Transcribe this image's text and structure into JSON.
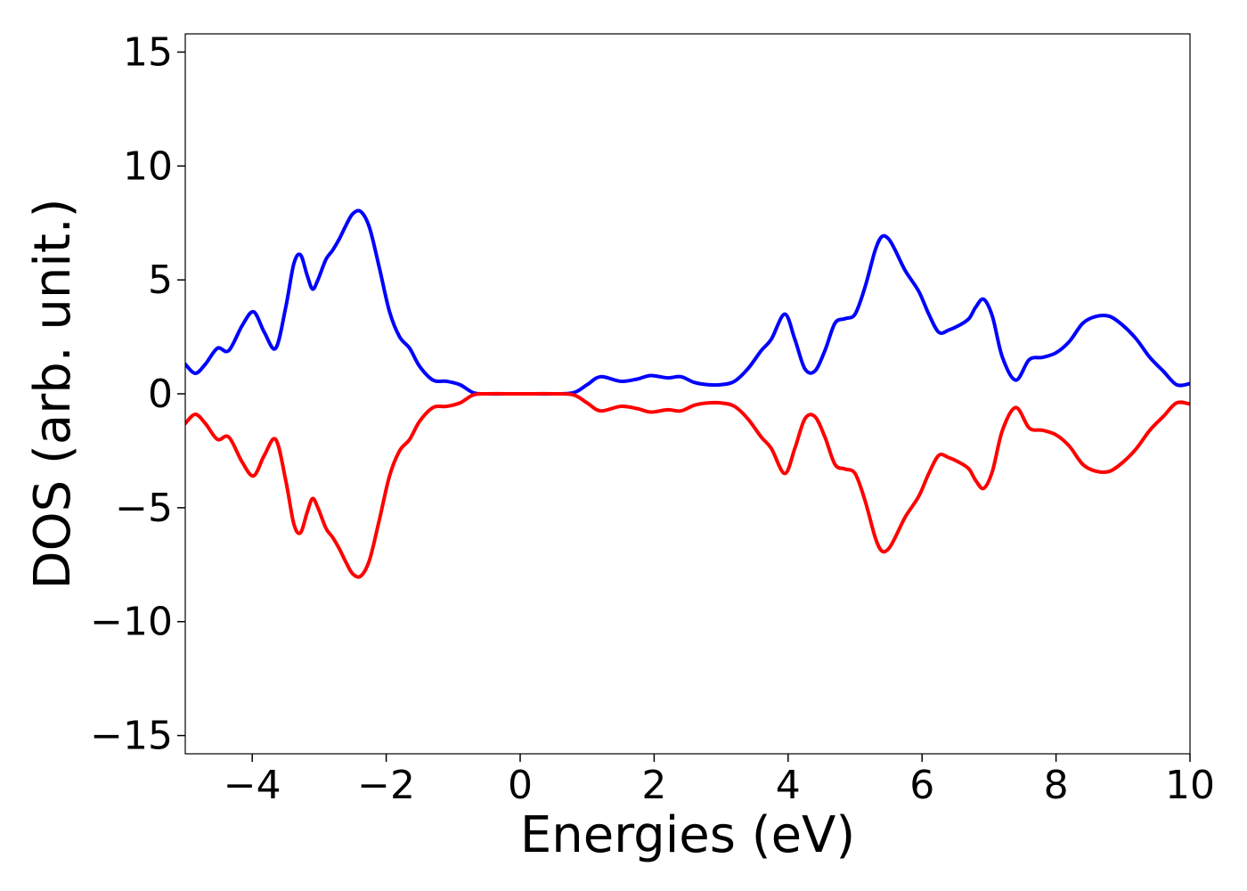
{
  "chart_data": {
    "type": "line",
    "title": "",
    "xlabel": "Energies (eV)",
    "ylabel": "DOS (arb. unit.)",
    "xlim": [
      -5,
      10
    ],
    "ylim": [
      -15.8,
      15.8
    ],
    "grid": false,
    "legend": "none",
    "xticks": [
      {
        "value": -4,
        "label": "−4"
      },
      {
        "value": -2,
        "label": "−2"
      },
      {
        "value": 0,
        "label": "0"
      },
      {
        "value": 2,
        "label": "2"
      },
      {
        "value": 4,
        "label": "4"
      },
      {
        "value": 6,
        "label": "6"
      },
      {
        "value": 8,
        "label": "8"
      },
      {
        "value": 10,
        "label": "10"
      }
    ],
    "yticks": [
      {
        "value": -15,
        "label": "−15"
      },
      {
        "value": -10,
        "label": "−10"
      },
      {
        "value": -5,
        "label": "−5"
      },
      {
        "value": 0,
        "label": "0"
      },
      {
        "value": 5,
        "label": "5"
      },
      {
        "value": 10,
        "label": "10"
      },
      {
        "value": 15,
        "label": "15"
      }
    ],
    "series": [
      {
        "color": "#0000ff",
        "x": [
          -5.0,
          -4.85,
          -4.7,
          -4.52,
          -4.35,
          -4.15,
          -3.98,
          -3.82,
          -3.65,
          -3.5,
          -3.38,
          -3.28,
          -3.18,
          -3.1,
          -3.02,
          -2.9,
          -2.8,
          -2.7,
          -2.6,
          -2.5,
          -2.38,
          -2.25,
          -2.1,
          -1.95,
          -1.8,
          -1.65,
          -1.5,
          -1.3,
          -1.1,
          -0.9,
          -0.7,
          -0.5,
          0.0,
          0.5,
          0.8,
          1.0,
          1.2,
          1.5,
          1.75,
          1.95,
          2.2,
          2.4,
          2.6,
          2.8,
          3.0,
          3.2,
          3.4,
          3.6,
          3.75,
          3.95,
          4.1,
          4.25,
          4.4,
          4.55,
          4.7,
          4.85,
          5.0,
          5.15,
          5.3,
          5.4,
          5.5,
          5.6,
          5.75,
          5.95,
          6.1,
          6.25,
          6.4,
          6.55,
          6.7,
          6.8,
          6.92,
          7.05,
          7.2,
          7.4,
          7.6,
          7.8,
          8.0,
          8.2,
          8.4,
          8.6,
          8.8,
          9.0,
          9.2,
          9.4,
          9.6,
          9.8,
          10.0
        ],
        "y": [
          1.3,
          0.9,
          1.3,
          2.0,
          1.9,
          3.0,
          3.6,
          2.7,
          2.0,
          3.8,
          5.7,
          6.1,
          5.2,
          4.6,
          5.0,
          5.9,
          6.3,
          6.8,
          7.4,
          7.9,
          8.0,
          7.3,
          5.5,
          3.6,
          2.5,
          2.0,
          1.2,
          0.6,
          0.55,
          0.4,
          0.05,
          0.0,
          0.0,
          0.0,
          0.05,
          0.4,
          0.75,
          0.55,
          0.65,
          0.8,
          0.7,
          0.75,
          0.5,
          0.4,
          0.4,
          0.55,
          1.1,
          1.9,
          2.4,
          3.5,
          2.4,
          1.1,
          1.0,
          1.9,
          3.1,
          3.3,
          3.5,
          4.7,
          6.3,
          6.9,
          6.8,
          6.3,
          5.4,
          4.5,
          3.5,
          2.7,
          2.8,
          3.0,
          3.3,
          3.8,
          4.15,
          3.4,
          1.6,
          0.6,
          1.5,
          1.6,
          1.8,
          2.3,
          3.1,
          3.4,
          3.4,
          3.0,
          2.4,
          1.6,
          1.0,
          0.4,
          0.45
        ]
      },
      {
        "color": "#ff0000",
        "x": [
          -5.0,
          -4.85,
          -4.7,
          -4.52,
          -4.35,
          -4.15,
          -3.98,
          -3.82,
          -3.65,
          -3.5,
          -3.38,
          -3.28,
          -3.18,
          -3.1,
          -3.02,
          -2.9,
          -2.8,
          -2.7,
          -2.6,
          -2.5,
          -2.38,
          -2.25,
          -2.1,
          -1.95,
          -1.8,
          -1.65,
          -1.5,
          -1.3,
          -1.1,
          -0.9,
          -0.7,
          -0.5,
          0.0,
          0.5,
          0.8,
          1.0,
          1.2,
          1.5,
          1.75,
          1.95,
          2.2,
          2.4,
          2.6,
          2.8,
          3.0,
          3.2,
          3.4,
          3.6,
          3.75,
          3.95,
          4.1,
          4.25,
          4.4,
          4.55,
          4.7,
          4.85,
          5.0,
          5.15,
          5.3,
          5.4,
          5.5,
          5.6,
          5.75,
          5.95,
          6.1,
          6.25,
          6.4,
          6.55,
          6.7,
          6.8,
          6.92,
          7.05,
          7.2,
          7.4,
          7.6,
          7.8,
          8.0,
          8.2,
          8.4,
          8.6,
          8.8,
          9.0,
          9.2,
          9.4,
          9.6,
          9.8,
          10.0
        ],
        "y": [
          -1.3,
          -0.9,
          -1.3,
          -2.0,
          -1.9,
          -3.0,
          -3.6,
          -2.7,
          -2.0,
          -3.8,
          -5.7,
          -6.1,
          -5.2,
          -4.6,
          -5.0,
          -5.9,
          -6.3,
          -6.8,
          -7.4,
          -7.9,
          -8.0,
          -7.3,
          -5.5,
          -3.6,
          -2.5,
          -2.0,
          -1.2,
          -0.6,
          -0.55,
          -0.4,
          -0.05,
          0.0,
          0.0,
          0.0,
          -0.05,
          -0.4,
          -0.75,
          -0.55,
          -0.65,
          -0.8,
          -0.7,
          -0.75,
          -0.5,
          -0.4,
          -0.4,
          -0.55,
          -1.1,
          -1.9,
          -2.4,
          -3.5,
          -2.4,
          -1.1,
          -1.0,
          -1.9,
          -3.1,
          -3.3,
          -3.5,
          -4.7,
          -6.3,
          -6.9,
          -6.8,
          -6.3,
          -5.4,
          -4.5,
          -3.5,
          -2.7,
          -2.8,
          -3.0,
          -3.3,
          -3.8,
          -4.15,
          -3.4,
          -1.6,
          -0.6,
          -1.5,
          -1.6,
          -1.8,
          -2.3,
          -3.1,
          -3.4,
          -3.4,
          -3.0,
          -2.4,
          -1.6,
          -1.0,
          -0.4,
          -0.45
        ]
      }
    ]
  }
}
